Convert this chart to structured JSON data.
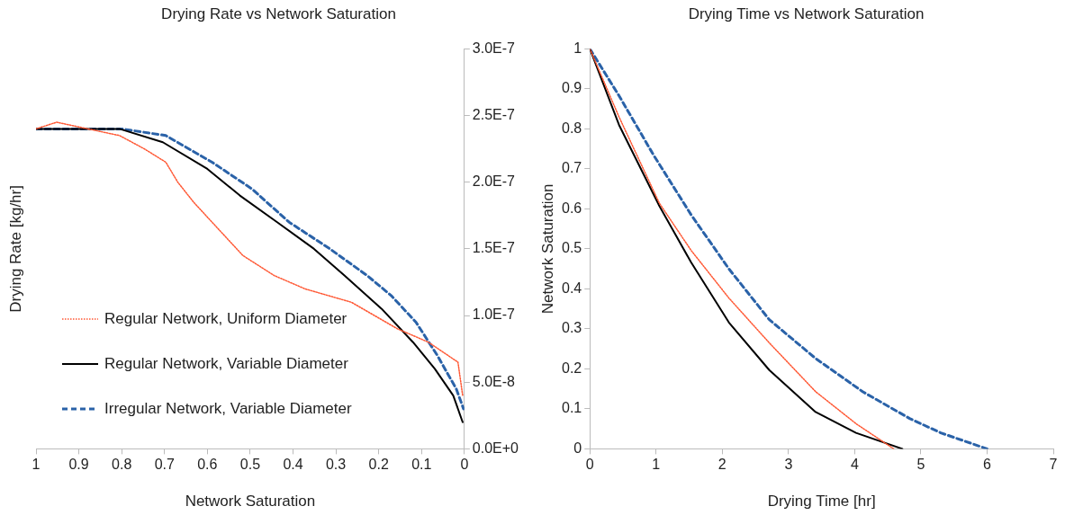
{
  "chart_data": [
    {
      "type": "line",
      "title": "Drying Rate vs Network Saturation",
      "xlabel": "Network Saturation",
      "ylabel": "Drying Rate [kg/hr]",
      "xlim": [
        1,
        0
      ],
      "xticks": [
        1,
        0.9,
        0.8,
        0.7,
        0.6,
        0.5,
        0.4,
        0.3,
        0.2,
        0.1,
        0
      ],
      "ylim": [
        0,
        3e-07
      ],
      "yticks": [
        {
          "value": 0,
          "label": "0.0E+0"
        },
        {
          "value": 5e-08,
          "label": "5.0E-8"
        },
        {
          "value": 1e-07,
          "label": "1.0E-7"
        },
        {
          "value": 1.5e-07,
          "label": "1.5E-7"
        },
        {
          "value": 2e-07,
          "label": "2.0E-7"
        },
        {
          "value": 2.5e-07,
          "label": "2.5E-7"
        },
        {
          "value": 3e-07,
          "label": "3.0E-7"
        }
      ],
      "grid": false,
      "legend": "bottom left",
      "marker": "none",
      "series": [
        {
          "name": "Regular Network, Uniform Diameter",
          "color": "#ff5733",
          "line_style": "dotted",
          "x": [
            1,
            0.952,
            0.805,
            0.747,
            0.697,
            0.669,
            0.632,
            0.589,
            0.517,
            0.444,
            0.372,
            0.264,
            0.156,
            0.084,
            0.015,
            0.004
          ],
          "values": [
            2.4e-07,
            2.45e-07,
            2.35e-07,
            2.25e-07,
            2.15e-07,
            2e-07,
            1.85e-07,
            1.7e-07,
            1.45e-07,
            1.3e-07,
            1.2e-07,
            1.1e-07,
            9e-08,
            8e-08,
            6.5e-08,
            4e-08
          ]
        },
        {
          "name": "Regular Network, Variable Diameter",
          "color": "#000000",
          "line_style": "solid",
          "x": [
            1,
            0.805,
            0.704,
            0.6,
            0.524,
            0.437,
            0.351,
            0.28,
            0.193,
            0.12,
            0.069,
            0.026,
            0.004
          ],
          "values": [
            2.4e-07,
            2.4e-07,
            2.3e-07,
            2.1e-07,
            1.9e-07,
            1.7e-07,
            1.5e-07,
            1.3e-07,
            1.05e-07,
            8e-08,
            6e-08,
            4e-08,
            2e-08
          ]
        },
        {
          "name": "Irregular Network, Variable Diameter",
          "color": "#2a62a8",
          "line_style": "dashed",
          "x": [
            1,
            0.8,
            0.697,
            0.589,
            0.496,
            0.409,
            0.314,
            0.227,
            0.171,
            0.113,
            0.063,
            0.019,
            0.002
          ],
          "values": [
            2.4e-07,
            2.4e-07,
            2.35e-07,
            2.15e-07,
            1.95e-07,
            1.7e-07,
            1.5e-07,
            1.3e-07,
            1.15e-07,
            9.5e-08,
            7e-08,
            4.5e-08,
            3e-08
          ]
        }
      ]
    },
    {
      "type": "line",
      "title": "Drying Time vs Network Saturation",
      "xlabel": "Drying Time [hr]",
      "ylabel": "Network Saturation",
      "xlim": [
        0,
        7
      ],
      "xticks": [
        0,
        1,
        2,
        3,
        4,
        5,
        6,
        7
      ],
      "ylim": [
        0,
        1
      ],
      "yticks": [
        0,
        0.1,
        0.2,
        0.3,
        0.4,
        0.5,
        0.6,
        0.7,
        0.8,
        0.9,
        1
      ],
      "grid": false,
      "marker": "none",
      "series": [
        {
          "color": "#ff5733",
          "line_style": "dotted",
          "x": [
            0,
            0.44,
            1.05,
            1.53,
            2.1,
            2.71,
            3.41,
            4.02,
            4.59
          ],
          "values": [
            1,
            0.83,
            0.614,
            0.496,
            0.377,
            0.265,
            0.143,
            0.063,
            0
          ]
        },
        {
          "color": "#000000",
          "line_style": "solid",
          "x": [
            0,
            0.44,
            1.05,
            1.53,
            2.1,
            2.71,
            3.41,
            4.02,
            4.72
          ],
          "values": [
            1,
            0.81,
            0.607,
            0.466,
            0.316,
            0.197,
            0.092,
            0.04,
            0
          ]
        },
        {
          "color": "#2a62a8",
          "line_style": "dashed",
          "x": [
            0,
            0.44,
            0.96,
            1.53,
            2.1,
            2.71,
            3.41,
            4.12,
            4.83,
            5.3,
            6
          ],
          "values": [
            1,
            0.883,
            0.735,
            0.585,
            0.45,
            0.323,
            0.226,
            0.143,
            0.076,
            0.04,
            0
          ]
        }
      ]
    }
  ]
}
